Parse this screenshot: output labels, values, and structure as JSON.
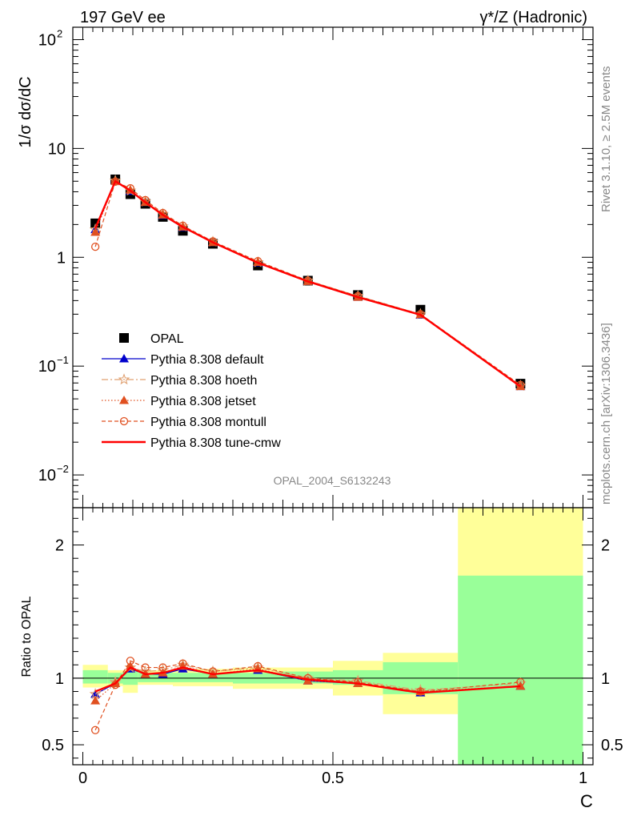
{
  "header": {
    "left": "197 GeV ee",
    "right": "γ*/Z (Hadronic)"
  },
  "side_labels": {
    "rivet": "Rivet 3.1.10, ≥ 2.5M events",
    "mcplots": "mcplots.cern.ch [arXiv:1306.3436]"
  },
  "watermark": "OPAL_2004_S6132243",
  "chart_data": [
    {
      "type": "line",
      "panel": "main",
      "ylabel": "1/σ dσ/dC",
      "yscale": "log",
      "ylim": [
        0.005,
        130
      ],
      "xlim": [
        -0.02,
        1.02
      ],
      "yticks": [
        {
          "v": 100,
          "b": "10",
          "e": "2"
        },
        {
          "v": 10,
          "b": "10",
          "e": ""
        },
        {
          "v": 1,
          "b": "1",
          "e": ""
        },
        {
          "v": 0.1,
          "b": "10",
          "e": "−1"
        },
        {
          "v": 0.01,
          "b": "10",
          "e": "−2"
        }
      ],
      "data_series": {
        "name": "OPAL",
        "x": [
          0.025,
          0.065,
          0.095,
          0.125,
          0.16,
          0.2,
          0.26,
          0.35,
          0.45,
          0.55,
          0.675,
          0.875
        ],
        "y": [
          2.05,
          5.2,
          3.8,
          3.1,
          2.35,
          1.75,
          1.33,
          0.84,
          0.61,
          0.45,
          0.33,
          0.069
        ]
      },
      "series": [
        {
          "name": "Pythia 8.308 default",
          "color": "#0000cc",
          "dash": "",
          "marker": "tri-fill",
          "y": [
            1.8,
            5.0,
            4.05,
            3.2,
            2.43,
            1.88,
            1.37,
            0.89,
            0.6,
            0.43,
            0.295,
            0.065
          ]
        },
        {
          "name": "Pythia 8.308 hoeth",
          "color": "#e0a070",
          "dash": "8,3,2,3",
          "marker": "star",
          "y": [
            1.8,
            5.05,
            4.1,
            3.25,
            2.5,
            1.92,
            1.39,
            0.9,
            0.61,
            0.44,
            0.3,
            0.066
          ]
        },
        {
          "name": "Pythia 8.308 jetset",
          "color": "#e05020",
          "dash": "1.5,2.5",
          "marker": "tri-fill",
          "y": [
            1.7,
            5.0,
            4.15,
            3.2,
            2.45,
            1.9,
            1.37,
            0.9,
            0.6,
            0.43,
            0.298,
            0.065
          ]
        },
        {
          "name": "Pythia 8.308 montull",
          "color": "#e05020",
          "dash": "5,3",
          "marker": "circle-open",
          "y": [
            1.25,
            4.95,
            4.3,
            3.35,
            2.55,
            1.95,
            1.4,
            0.92,
            0.61,
            0.44,
            0.3,
            0.067
          ]
        },
        {
          "name": "Pythia 8.308 tune-cmw",
          "color": "#ff0000",
          "dash": "",
          "marker": "none",
          "y": [
            1.85,
            5.0,
            4.1,
            3.2,
            2.45,
            1.9,
            1.37,
            0.89,
            0.6,
            0.43,
            0.296,
            0.065
          ]
        }
      ]
    },
    {
      "type": "line",
      "panel": "ratio",
      "ylabel": "Ratio to OPAL",
      "xlabel": "C",
      "ylim": [
        0.35,
        2.28
      ],
      "xlim": [
        -0.02,
        1.02
      ],
      "yticks": [
        0.5,
        1,
        2
      ],
      "xticks": [
        {
          "v": 0,
          "label": "0"
        },
        {
          "v": 0.5,
          "label": "0.5"
        },
        {
          "v": 1,
          "label": "1"
        }
      ],
      "bands": [
        {
          "x0": 0.0,
          "x1": 0.05,
          "stat": [
            0.96,
            1.06
          ],
          "tot": [
            0.93,
            1.1
          ]
        },
        {
          "x0": 0.05,
          "x1": 0.08,
          "stat": [
            0.96,
            1.04
          ],
          "tot": [
            0.94,
            1.06
          ]
        },
        {
          "x0": 0.08,
          "x1": 0.11,
          "stat": [
            0.95,
            1.05
          ],
          "tot": [
            0.89,
            1.06
          ]
        },
        {
          "x0": 0.11,
          "x1": 0.14,
          "stat": [
            0.97,
            1.04
          ],
          "tot": [
            0.95,
            1.06
          ]
        },
        {
          "x0": 0.14,
          "x1": 0.18,
          "stat": [
            0.97,
            1.04
          ],
          "tot": [
            0.95,
            1.06
          ]
        },
        {
          "x0": 0.18,
          "x1": 0.22,
          "stat": [
            0.97,
            1.04
          ],
          "tot": [
            0.94,
            1.07
          ]
        },
        {
          "x0": 0.22,
          "x1": 0.3,
          "stat": [
            0.97,
            1.04
          ],
          "tot": [
            0.94,
            1.07
          ]
        },
        {
          "x0": 0.3,
          "x1": 0.4,
          "stat": [
            0.96,
            1.04
          ],
          "tot": [
            0.92,
            1.08
          ]
        },
        {
          "x0": 0.4,
          "x1": 0.5,
          "stat": [
            0.96,
            1.05
          ],
          "tot": [
            0.92,
            1.08
          ]
        },
        {
          "x0": 0.5,
          "x1": 0.6,
          "stat": [
            0.95,
            1.06
          ],
          "tot": [
            0.87,
            1.13
          ]
        },
        {
          "x0": 0.6,
          "x1": 0.75,
          "stat": [
            0.88,
            1.12
          ],
          "tot": [
            0.73,
            1.19
          ]
        },
        {
          "x0": 0.75,
          "x1": 1.0,
          "stat": [
            0.35,
            1.77
          ],
          "tot": [
            0.35,
            2.28
          ]
        }
      ],
      "series": [
        {
          "name": "Pythia 8.308 default",
          "y": [
            0.88,
            0.96,
            1.07,
            1.03,
            1.03,
            1.07,
            1.03,
            1.06,
            0.98,
            0.96,
            0.89,
            0.94
          ]
        },
        {
          "name": "Pythia 8.308 hoeth",
          "y": [
            0.88,
            0.97,
            1.08,
            1.05,
            1.06,
            1.1,
            1.05,
            1.08,
            1.0,
            0.98,
            0.91,
            0.96
          ]
        },
        {
          "name": "Pythia 8.308 jetset",
          "y": [
            0.83,
            0.96,
            1.09,
            1.03,
            1.04,
            1.09,
            1.03,
            1.07,
            0.98,
            0.96,
            0.9,
            0.94
          ]
        },
        {
          "name": "Pythia 8.308 montull",
          "y": [
            0.61,
            0.95,
            1.13,
            1.08,
            1.08,
            1.11,
            1.05,
            1.09,
            1.0,
            0.97,
            0.9,
            0.97
          ]
        },
        {
          "name": "Pythia 8.308 tune-cmw",
          "y": [
            0.9,
            0.96,
            1.08,
            1.03,
            1.04,
            1.08,
            1.03,
            1.06,
            0.99,
            0.96,
            0.89,
            0.94
          ]
        }
      ]
    }
  ]
}
